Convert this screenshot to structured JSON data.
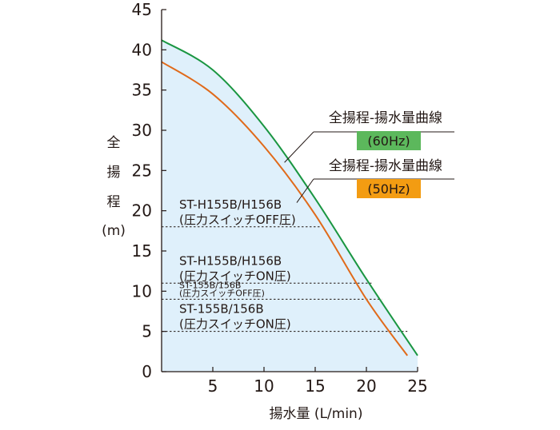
{
  "chart_data": {
    "type": "line",
    "xlabel": "揚水量 (L/min)",
    "ylabel_chars": [
      "全",
      "揚",
      "程",
      "(m)"
    ],
    "xlim": [
      0,
      25
    ],
    "ylim": [
      0,
      45
    ],
    "x_ticks": [
      5,
      10,
      15,
      20,
      25
    ],
    "y_ticks": [
      0,
      5,
      10,
      15,
      20,
      25,
      30,
      35,
      40,
      45
    ],
    "grid": false,
    "series": [
      {
        "name": "全揚程-揚水量曲線",
        "badge": "(60Hz)",
        "color": "#1a9641",
        "badge_color": "#5cb85c",
        "x": [
          0,
          5,
          10,
          15,
          20,
          25
        ],
        "y": [
          41.2,
          37.5,
          30.5,
          21.5,
          11.5,
          2.0
        ]
      },
      {
        "name": "全揚程-揚水量曲線",
        "badge": "(50Hz)",
        "color": "#e06a1a",
        "badge_color": "#f39c12",
        "x": [
          0,
          5,
          10,
          15,
          20,
          24
        ],
        "y": [
          38.5,
          34.5,
          28.0,
          19.5,
          9.0,
          2.0
        ]
      }
    ],
    "fill_color": "#dff0fb",
    "reference_lines": [
      {
        "y": 18.0,
        "x_end": 15.5,
        "label_lines": [
          "ST-H155B/H156B",
          "(圧力スイッチOFF圧)"
        ],
        "small": false
      },
      {
        "y": 11.0,
        "x_end": 20.5,
        "label_lines": [
          "ST-H155B/H156B",
          "(圧力スイッチON圧)"
        ],
        "small": false
      },
      {
        "y": 9.0,
        "x_end": 21.5,
        "label_lines": [
          "ST-155B/156B",
          "(圧力スイッチOFF圧)"
        ],
        "small": true
      },
      {
        "y": 5.0,
        "x_end": 24.0,
        "label_lines": [
          "ST-155B/156B",
          "(圧力スイッチON圧)"
        ],
        "small": false
      }
    ]
  }
}
